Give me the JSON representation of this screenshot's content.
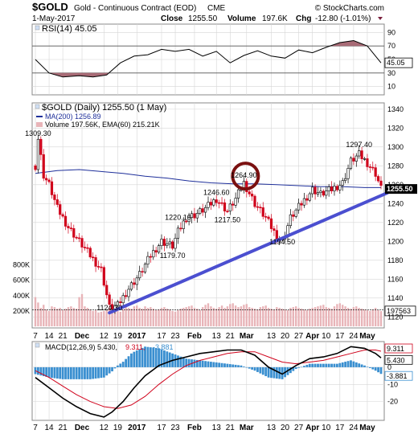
{
  "header": {
    "symbol": "$GOLD",
    "description": "Gold - Continuous Contract (EOD)",
    "exchange": "CME",
    "date": "1-May-2017",
    "close_label": "Close",
    "close": "1255.50",
    "volume_label": "Volume",
    "volume": "197.6K",
    "chg_label": "Chg",
    "chg": "-12.80 (-1.01%)",
    "copyright": "© StockCharts.com"
  },
  "chart_data": [
    {
      "type": "line",
      "name": "rsi-panel",
      "legend": "RSI(14) 45.05",
      "ylim": [
        0,
        100
      ],
      "y_ticks": [
        10,
        30,
        50,
        70,
        90
      ],
      "levels": [
        30,
        70
      ],
      "last_value": "45.05",
      "x": [
        0,
        5,
        10,
        16,
        21,
        26,
        31,
        36,
        41,
        46,
        51,
        56,
        61,
        66,
        71,
        76,
        81,
        86,
        91,
        96,
        101,
        106,
        111,
        116,
        121,
        126
      ],
      "values": [
        50,
        30,
        24,
        26,
        24,
        27,
        45,
        55,
        57,
        65,
        62,
        65,
        55,
        62,
        45,
        56,
        63,
        55,
        52,
        64,
        60,
        68,
        75,
        78,
        70,
        45
      ],
      "color": "#000000"
    },
    {
      "type": "line",
      "name": "price-panel",
      "legend": "$GOLD (Daily) 1255.50 (1 May)",
      "ylim": [
        1110,
        1345
      ],
      "y_ticks": [
        1120,
        1140,
        1160,
        1180,
        1200,
        1220,
        1240,
        1260,
        1280,
        1300,
        1320,
        1340
      ],
      "last_price_label": "1255.50",
      "ma_label": "MA(200) 1256.89",
      "ma_last_label": "1256.89",
      "annotations": [
        {
          "text": "1309.30",
          "x": 1,
          "y": 1309.3
        },
        {
          "text": "1124.30",
          "x": 27,
          "y": 1124.3
        },
        {
          "text": "1179.70",
          "x": 50,
          "y": 1179.7
        },
        {
          "text": "1220.10",
          "x": 52,
          "y": 1220.1
        },
        {
          "text": "1246.60",
          "x": 66,
          "y": 1246.6
        },
        {
          "text": "1217.50",
          "x": 70,
          "y": 1217.5
        },
        {
          "text": "1264.90",
          "x": 76,
          "y": 1264.9
        },
        {
          "text": "1194.50",
          "x": 90,
          "y": 1194.5
        },
        {
          "text": "1297.40",
          "x": 118,
          "y": 1297.4
        }
      ],
      "price_path": {
        "x": [
          0,
          1,
          3,
          5,
          8,
          12,
          16,
          20,
          24,
          27,
          30,
          34,
          38,
          42,
          46,
          50,
          52,
          55,
          58,
          62,
          66,
          70,
          73,
          76,
          80,
          84,
          88,
          90,
          93,
          97,
          101,
          104,
          108,
          112,
          115,
          118,
          121,
          124,
          126
        ],
        "y": [
          1280,
          1309,
          1270,
          1260,
          1235,
          1215,
          1200,
          1185,
          1170,
          1130,
          1132,
          1150,
          1165,
          1185,
          1200,
          1195,
          1210,
          1225,
          1228,
          1235,
          1245,
          1232,
          1245,
          1262,
          1240,
          1225,
          1205,
          1200,
          1225,
          1240,
          1255,
          1250,
          1255,
          1262,
          1285,
          1292,
          1283,
          1272,
          1256
        ]
      },
      "ma_series": {
        "x": [
          0,
          8,
          16,
          24,
          32,
          40,
          48,
          56,
          64,
          72,
          80,
          88,
          96,
          104,
          112,
          120,
          126
        ],
        "y": [
          1272,
          1275,
          1276,
          1274,
          1272,
          1269,
          1267,
          1264,
          1262,
          1261,
          1261,
          1260,
          1259,
          1258,
          1258,
          1257,
          1257
        ]
      },
      "trendline": {
        "x": [
          27,
          126
        ],
        "y": [
          1124.3,
          1248
        ]
      },
      "highlight_circle": {
        "x": 76,
        "y": 1264.9
      },
      "colors": {
        "up": "#000000",
        "down": "#d0021b",
        "ma": "#1e2f9a",
        "trend": "#4b4fd0",
        "circle": "#7a1010"
      }
    },
    {
      "type": "bar",
      "name": "volume-panel",
      "legend": "Volume 197.56K, EMA(60) 215.21K",
      "ylim": [
        0,
        900
      ],
      "y_ticks": [
        "200K",
        "400K",
        "600K",
        "800K"
      ],
      "y_tick_values": [
        200,
        400,
        600,
        800
      ],
      "last_label": "197563",
      "values_k": [
        380,
        310,
        240,
        280,
        220,
        200,
        260,
        250,
        230,
        240,
        210,
        230,
        250,
        260,
        240,
        230,
        380,
        420,
        260,
        240,
        220,
        200,
        210,
        180,
        190,
        200,
        220,
        230,
        240,
        210,
        200,
        190,
        220,
        250,
        240,
        230,
        260,
        270,
        240,
        230,
        260,
        240,
        250,
        230,
        210,
        220,
        240,
        250,
        230,
        220,
        200,
        190,
        210,
        230,
        240,
        250,
        260,
        270,
        240,
        230,
        210,
        250,
        280,
        300,
        260,
        240,
        230,
        250,
        270,
        240,
        260,
        290,
        300,
        270,
        250,
        260,
        280,
        290,
        250,
        240,
        230,
        220,
        250,
        260,
        270,
        240,
        230,
        220,
        250,
        240,
        230,
        220,
        210,
        240,
        250,
        260,
        240,
        230,
        220,
        210,
        230,
        240,
        250,
        260,
        270,
        280,
        250,
        240,
        230,
        260,
        290,
        300,
        280,
        260,
        240,
        230,
        250,
        260,
        240,
        230,
        220,
        210,
        200,
        220,
        240,
        210,
        198
      ],
      "ema_k": 215.21,
      "bar_color": "#e8b4b8",
      "ema_color": "#000000"
    },
    {
      "type": "line",
      "name": "macd-panel",
      "legend_main": "MACD(12,26,9) 5.430,",
      "legend_signal": "9.311,",
      "legend_hist": "-3.881",
      "ylim": [
        -30,
        14
      ],
      "y_ticks": [
        -20,
        -10,
        0
      ],
      "last_labels": [
        "9.311",
        "5.430",
        "-3.881"
      ],
      "macd": {
        "x": [
          0,
          5,
          10,
          15,
          20,
          25,
          28,
          32,
          36,
          40,
          45,
          50,
          55,
          60,
          65,
          70,
          75,
          80,
          85,
          90,
          95,
          100,
          105,
          110,
          115,
          120,
          124,
          126
        ],
        "y": [
          -6,
          -12,
          -18,
          -23,
          -27,
          -29,
          -26,
          -20,
          -12,
          -5,
          1,
          4,
          6,
          8,
          9,
          10,
          10,
          7,
          0,
          -4,
          1,
          5,
          6,
          8,
          12,
          11,
          8,
          5.43
        ]
      },
      "signal": {
        "x": [
          0,
          5,
          10,
          15,
          20,
          25,
          30,
          35,
          40,
          45,
          50,
          55,
          60,
          65,
          70,
          75,
          80,
          85,
          90,
          95,
          100,
          105,
          110,
          115,
          120,
          124,
          126
        ],
        "y": [
          -2,
          -6,
          -11,
          -16,
          -20,
          -23,
          -24,
          -22,
          -17,
          -10,
          -4,
          1,
          4,
          6,
          8,
          9,
          9,
          6,
          3,
          2,
          3,
          4,
          6,
          8,
          10,
          10,
          9.311
        ]
      },
      "colors": {
        "macd": "#000000",
        "signal": "#d0021b",
        "hist": "#3a8fd0"
      }
    }
  ],
  "x_axis": {
    "labels": [
      {
        "text": "7",
        "x": 0,
        "bold": false
      },
      {
        "text": "14",
        "x": 5,
        "bold": false
      },
      {
        "text": "21",
        "x": 10,
        "bold": false
      },
      {
        "text": "Dec",
        "x": 17,
        "bold": true
      },
      {
        "text": "12",
        "x": 25,
        "bold": false
      },
      {
        "text": "19",
        "x": 30,
        "bold": false
      },
      {
        "text": "2017",
        "x": 37,
        "bold": true
      },
      {
        "text": "17",
        "x": 46,
        "bold": false
      },
      {
        "text": "23",
        "x": 51,
        "bold": false
      },
      {
        "text": "Feb",
        "x": 58,
        "bold": true
      },
      {
        "text": "13",
        "x": 66,
        "bold": false
      },
      {
        "text": "21",
        "x": 71,
        "bold": false
      },
      {
        "text": "Mar",
        "x": 77,
        "bold": true
      },
      {
        "text": "13",
        "x": 86,
        "bold": false
      },
      {
        "text": "20",
        "x": 91,
        "bold": false
      },
      {
        "text": "27",
        "x": 96,
        "bold": false
      },
      {
        "text": "Apr",
        "x": 101,
        "bold": true
      },
      {
        "text": "10",
        "x": 106,
        "bold": false
      },
      {
        "text": "17",
        "x": 111,
        "bold": false
      },
      {
        "text": "24",
        "x": 116,
        "bold": false
      },
      {
        "text": "May",
        "x": 121,
        "bold": true
      }
    ],
    "range": [
      0,
      126
    ]
  }
}
